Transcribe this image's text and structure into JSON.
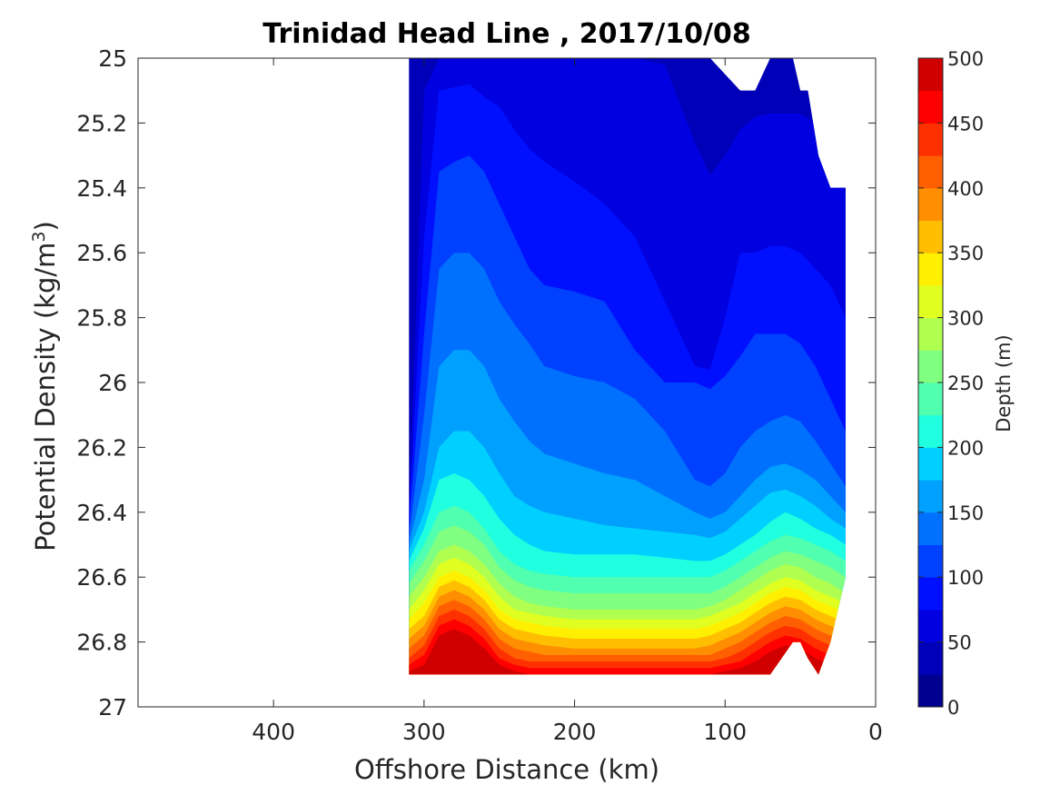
{
  "chart_data": {
    "type": "contourf",
    "title": "Trinidad Head Line , 2017/10/08",
    "xlabel": "Offshore Distance (km)",
    "ylabel_main": "Potential Density (kg/m",
    "ylabel_sup": "3",
    "ylabel_close": ")",
    "xlim": [
      490,
      0
    ],
    "x_reversed": true,
    "ylim": [
      25,
      27
    ],
    "y_reversed": true,
    "xticks": [
      400,
      300,
      200,
      100,
      0
    ],
    "xtick_labels": [
      "400",
      "300",
      "200",
      "100",
      "0"
    ],
    "yticks": [
      25,
      25.2,
      25.4,
      25.6,
      25.8,
      26,
      26.2,
      26.4,
      26.6,
      26.8,
      27
    ],
    "ytick_labels": [
      "25",
      "25.2",
      "25.4",
      "25.6",
      "25.8",
      "26",
      "26.2",
      "26.4",
      "26.6",
      "26.8",
      "27"
    ],
    "colorbar": {
      "label": "Depth (m)",
      "range": [
        0,
        500
      ],
      "ticks": [
        0,
        50,
        100,
        150,
        200,
        250,
        300,
        350,
        400,
        450,
        500
      ],
      "tick_labels": [
        "0",
        "50",
        "100",
        "150",
        "200",
        "250",
        "300",
        "350",
        "400",
        "450",
        "500"
      ],
      "level_step": 25,
      "colors": [
        "#00008f",
        "#0000b8",
        "#0000e0",
        "#0010ff",
        "#0040ff",
        "#0070ff",
        "#00a0ff",
        "#00d0ff",
        "#20ffdf",
        "#50ffaf",
        "#80ff80",
        "#b0ff50",
        "#e0ff20",
        "#ffef00",
        "#ffbf00",
        "#ff8f00",
        "#ff5f00",
        "#ff3000",
        "#ff0000",
        "#d00000"
      ]
    },
    "boundary": {
      "x": [
        310,
        300,
        250,
        200,
        150,
        110,
        90,
        80,
        70,
        55,
        50,
        45,
        38,
        30,
        20,
        20
      ],
      "y_top": [
        25,
        25,
        25,
        25,
        25,
        25,
        25.1,
        25.1,
        25,
        25,
        25.1,
        25.1,
        25.3,
        25.4,
        25.4,
        25.4
      ],
      "y_bottom": [
        26.9,
        26.9,
        26.9,
        26.9,
        26.9,
        26.9,
        26.9,
        26.9,
        26.9,
        26.8,
        26.8,
        26.85,
        26.9,
        26.8,
        26.6,
        26.4
      ]
    },
    "depth_isolines": {
      "x": [
        310,
        300,
        290,
        280,
        270,
        260,
        250,
        240,
        230,
        220,
        200,
        180,
        160,
        140,
        120,
        110,
        100,
        90,
        80,
        70,
        60,
        50,
        40,
        30,
        20
      ],
      "levels": [
        {
          "depth": 25,
          "y": [
            25.0,
            25.0,
            25.0,
            25.0,
            25.0,
            25.0,
            25.0,
            25.0,
            25.0,
            25.0,
            25.0,
            25.0,
            25.0,
            25.0,
            25.0,
            25.0,
            25.0,
            25.0,
            25.0,
            25.0,
            25.0,
            25.0,
            25.0,
            25.0,
            25.0
          ]
        },
        {
          "depth": 50,
          "y": [
            26.4,
            25.1,
            25.0,
            25.0,
            25.0,
            25.0,
            25.0,
            25.0,
            25.0,
            25.0,
            25.0,
            25.0,
            25.0,
            25.02,
            25.26,
            25.36,
            25.3,
            25.22,
            25.18,
            25.17,
            25.17,
            25.17,
            25.2,
            25.25,
            25.3
          ]
        },
        {
          "depth": 75,
          "y": [
            26.42,
            25.55,
            25.1,
            25.09,
            25.08,
            25.12,
            25.15,
            25.22,
            25.28,
            25.32,
            25.38,
            25.45,
            25.55,
            25.75,
            25.95,
            25.96,
            25.8,
            25.6,
            25.6,
            25.58,
            25.58,
            25.6,
            25.65,
            25.7,
            25.8
          ]
        },
        {
          "depth": 100,
          "y": [
            26.45,
            25.85,
            25.35,
            25.32,
            25.3,
            25.35,
            25.45,
            25.55,
            25.65,
            25.7,
            25.72,
            25.75,
            25.9,
            26.0,
            26.0,
            26.02,
            25.98,
            25.92,
            25.85,
            25.85,
            25.85,
            25.88,
            25.95,
            26.05,
            26.15
          ]
        },
        {
          "depth": 125,
          "y": [
            26.48,
            26.1,
            25.65,
            25.6,
            25.6,
            25.65,
            25.75,
            25.82,
            25.88,
            25.95,
            25.98,
            26.0,
            26.05,
            26.15,
            26.3,
            26.32,
            26.28,
            26.2,
            26.15,
            26.12,
            26.1,
            26.12,
            26.18,
            26.25,
            26.32
          ]
        },
        {
          "depth": 150,
          "y": [
            26.5,
            26.3,
            25.95,
            25.9,
            25.9,
            25.95,
            26.05,
            26.12,
            26.18,
            26.22,
            26.25,
            26.28,
            26.3,
            26.35,
            26.4,
            26.42,
            26.4,
            26.35,
            26.3,
            26.26,
            26.25,
            26.27,
            26.3,
            26.35,
            26.4
          ]
        },
        {
          "depth": 175,
          "y": [
            26.52,
            26.4,
            26.2,
            26.15,
            26.15,
            26.2,
            26.28,
            26.35,
            26.38,
            26.4,
            26.42,
            26.44,
            26.45,
            26.46,
            26.47,
            26.48,
            26.46,
            26.42,
            26.38,
            26.34,
            26.33,
            26.35,
            26.38,
            26.42,
            26.45
          ]
        },
        {
          "depth": 200,
          "y": [
            26.55,
            26.45,
            26.3,
            26.28,
            26.3,
            26.35,
            26.42,
            26.47,
            26.5,
            26.52,
            26.53,
            26.53,
            26.53,
            26.54,
            26.55,
            26.55,
            26.53,
            26.5,
            26.47,
            26.43,
            26.4,
            26.42,
            26.45,
            26.47,
            26.5
          ]
        },
        {
          "depth": 225,
          "y": [
            26.58,
            26.5,
            26.4,
            26.38,
            26.4,
            26.45,
            26.52,
            26.56,
            26.58,
            26.59,
            26.6,
            26.6,
            26.6,
            26.6,
            26.6,
            26.6,
            26.58,
            26.55,
            26.52,
            26.49,
            26.47,
            26.48,
            26.5,
            26.52,
            26.55
          ]
        },
        {
          "depth": 250,
          "y": [
            26.62,
            26.55,
            26.46,
            26.44,
            26.46,
            26.5,
            26.57,
            26.61,
            26.63,
            26.64,
            26.65,
            26.65,
            26.65,
            26.65,
            26.65,
            26.65,
            26.63,
            26.6,
            26.57,
            26.54,
            26.52,
            26.53,
            26.55,
            26.57,
            26.6
          ]
        },
        {
          "depth": 275,
          "y": [
            26.66,
            26.6,
            26.52,
            26.5,
            26.52,
            26.56,
            26.62,
            26.66,
            26.68,
            26.69,
            26.7,
            26.7,
            26.7,
            26.7,
            26.7,
            26.69,
            26.67,
            26.64,
            26.61,
            26.58,
            26.56,
            26.57,
            26.6,
            26.62,
            26.65
          ]
        },
        {
          "depth": 300,
          "y": [
            26.7,
            26.64,
            26.56,
            26.54,
            26.56,
            26.6,
            26.66,
            26.7,
            26.71,
            26.72,
            26.73,
            26.73,
            26.73,
            26.73,
            26.73,
            26.72,
            26.7,
            26.68,
            26.65,
            26.62,
            26.6,
            26.61,
            26.64,
            26.66,
            26.68
          ]
        },
        {
          "depth": 325,
          "y": [
            26.73,
            26.68,
            26.6,
            26.58,
            26.6,
            26.64,
            26.7,
            26.73,
            26.74,
            26.75,
            26.76,
            26.76,
            26.76,
            26.76,
            26.76,
            26.75,
            26.73,
            26.71,
            26.68,
            26.65,
            26.63,
            26.64,
            26.67,
            26.69,
            26.71
          ]
        },
        {
          "depth": 350,
          "y": [
            26.76,
            26.72,
            26.63,
            26.61,
            26.63,
            26.67,
            26.73,
            26.76,
            26.77,
            26.78,
            26.79,
            26.79,
            26.79,
            26.79,
            26.79,
            26.78,
            26.76,
            26.74,
            26.71,
            26.68,
            26.66,
            26.67,
            26.7,
            26.72,
            26.74
          ]
        },
        {
          "depth": 375,
          "y": [
            26.79,
            26.75,
            26.66,
            26.64,
            26.66,
            26.7,
            26.76,
            26.79,
            26.8,
            26.81,
            26.82,
            26.82,
            26.82,
            26.82,
            26.82,
            26.81,
            26.79,
            26.77,
            26.74,
            26.71,
            26.69,
            26.7,
            26.73,
            26.75,
            26.77
          ]
        },
        {
          "depth": 400,
          "y": [
            26.82,
            26.78,
            26.69,
            26.67,
            26.69,
            26.73,
            26.79,
            26.82,
            26.83,
            26.84,
            26.84,
            26.84,
            26.84,
            26.84,
            26.84,
            26.84,
            26.82,
            26.8,
            26.77,
            26.74,
            26.72,
            26.73,
            26.76,
            26.78,
            26.8
          ]
        },
        {
          "depth": 425,
          "y": [
            26.85,
            26.81,
            26.72,
            26.7,
            26.72,
            26.76,
            26.82,
            26.85,
            26.86,
            26.86,
            26.86,
            26.86,
            26.86,
            26.86,
            26.86,
            26.86,
            26.85,
            26.83,
            26.8,
            26.77,
            26.75,
            26.76,
            26.79,
            26.81,
            26.83
          ]
        },
        {
          "depth": 450,
          "y": [
            26.87,
            26.84,
            26.75,
            26.73,
            26.75,
            26.79,
            26.85,
            26.87,
            26.88,
            26.88,
            26.88,
            26.88,
            26.88,
            26.88,
            26.88,
            26.88,
            26.87,
            26.86,
            26.83,
            26.8,
            26.78,
            26.79,
            26.82,
            26.84,
            26.86
          ]
        },
        {
          "depth": 475,
          "y": [
            26.89,
            26.87,
            26.78,
            26.76,
            26.78,
            26.82,
            26.87,
            26.89,
            26.9,
            26.9,
            26.9,
            26.9,
            26.9,
            26.9,
            26.9,
            26.9,
            26.89,
            26.88,
            26.86,
            26.83,
            26.81,
            26.82,
            26.85,
            26.87,
            26.88
          ]
        }
      ]
    }
  }
}
